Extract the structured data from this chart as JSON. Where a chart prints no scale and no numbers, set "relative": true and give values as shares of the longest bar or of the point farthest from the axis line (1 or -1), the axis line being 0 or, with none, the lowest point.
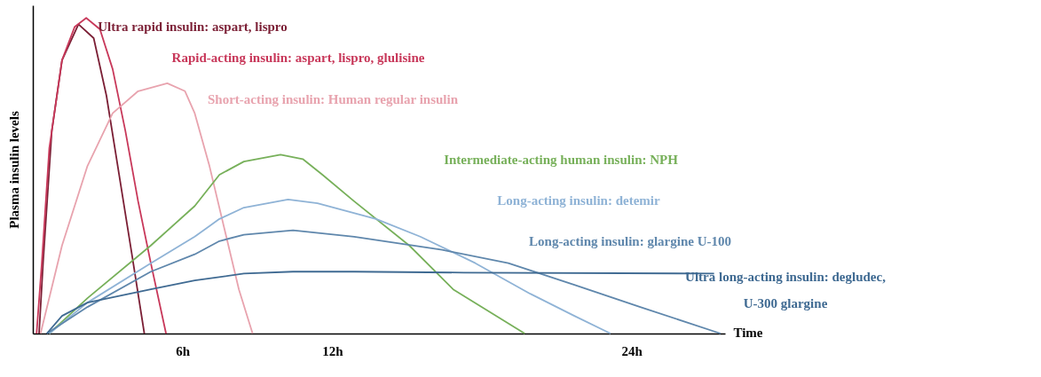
{
  "chart_data": {
    "type": "line",
    "relative": true,
    "ylabel": "Plasma insulin levels",
    "xlabel": "Time",
    "xlim": [
      0,
      27.75
    ],
    "xticks": [
      {
        "value": 6,
        "label": "6h"
      },
      {
        "value": 12,
        "label": "12h"
      },
      {
        "value": 24,
        "label": "24h"
      }
    ],
    "line_style": "solid",
    "series": [
      {
        "name": "Ultra rapid insulin: aspart, lispro",
        "color": "#7b1f35",
        "x": [
          0.25,
          0.41,
          0.76,
          1.17,
          1.83,
          2.44,
          2.95,
          3.46,
          3.97,
          4.47
        ],
        "values": [
          0,
          0.223,
          0.642,
          0.866,
          0.98,
          0.936,
          0.754,
          0.503,
          0.251,
          0
        ]
      },
      {
        "name": "Rapid-acting insulin: aspart, lispro, glulisine",
        "color": "#c8385a",
        "x": [
          0.15,
          0.36,
          0.66,
          1.17,
          1.68,
          2.14,
          2.69,
          3.2,
          3.71,
          4.22,
          4.73,
          5.34
        ],
        "values": [
          0,
          0.223,
          0.587,
          0.866,
          0.972,
          1.0,
          0.964,
          0.838,
          0.642,
          0.419,
          0.223,
          0
        ]
      },
      {
        "name": "Short-acting insulin: Human regular insulin",
        "color": "#e8a3ae",
        "x": [
          0.31,
          1.17,
          2.19,
          3.2,
          4.22,
          5.39,
          6.1,
          6.49,
          7.08,
          7.67,
          8.26,
          8.81
        ],
        "values": [
          0,
          0.279,
          0.531,
          0.698,
          0.768,
          0.793,
          0.768,
          0.698,
          0.531,
          0.335,
          0.14,
          0
        ]
      },
      {
        "name": "Intermediate-acting human insulin: NPH",
        "color": "#77b05a",
        "x": [
          0.66,
          2.19,
          4.73,
          6.49,
          7.48,
          8.46,
          9.93,
          10.82,
          11.61,
          12.88,
          15.09,
          16.85,
          19.72
        ],
        "values": [
          0,
          0.112,
          0.279,
          0.404,
          0.503,
          0.545,
          0.567,
          0.553,
          0.503,
          0.419,
          0.279,
          0.14,
          0
        ]
      },
      {
        "name": "Long-acting insulin: detemir",
        "color": "#8fb3d6",
        "x": [
          0.66,
          2.19,
          4.73,
          6.49,
          7.48,
          8.46,
          10.23,
          11.41,
          13.76,
          15.53,
          17.74,
          19.94,
          21.71,
          23.16
        ],
        "values": [
          0,
          0.098,
          0.223,
          0.307,
          0.363,
          0.399,
          0.425,
          0.413,
          0.363,
          0.307,
          0.223,
          0.126,
          0.056,
          0
        ]
      },
      {
        "name": "Long-acting insulin: glargine U-100",
        "color": "#5f87ac",
        "x": [
          0.56,
          2.19,
          4.73,
          6.49,
          7.48,
          8.46,
          10.43,
          12.88,
          16.41,
          19.06,
          21.71,
          24.35,
          27.57
        ],
        "values": [
          0,
          0.084,
          0.196,
          0.251,
          0.293,
          0.313,
          0.327,
          0.307,
          0.265,
          0.223,
          0.154,
          0.084,
          0
        ]
      },
      {
        "name": "Ultra long-acting insulin: degludec, U-300 glargine",
        "color": "#3f6a92",
        "x": [
          0.56,
          1.17,
          2.19,
          4.73,
          6.49,
          8.46,
          10.43,
          12.88,
          17.29,
          27.31
        ],
        "values": [
          0,
          0.056,
          0.098,
          0.14,
          0.168,
          0.19,
          0.196,
          0.196,
          0.193,
          0.19
        ]
      }
    ]
  }
}
